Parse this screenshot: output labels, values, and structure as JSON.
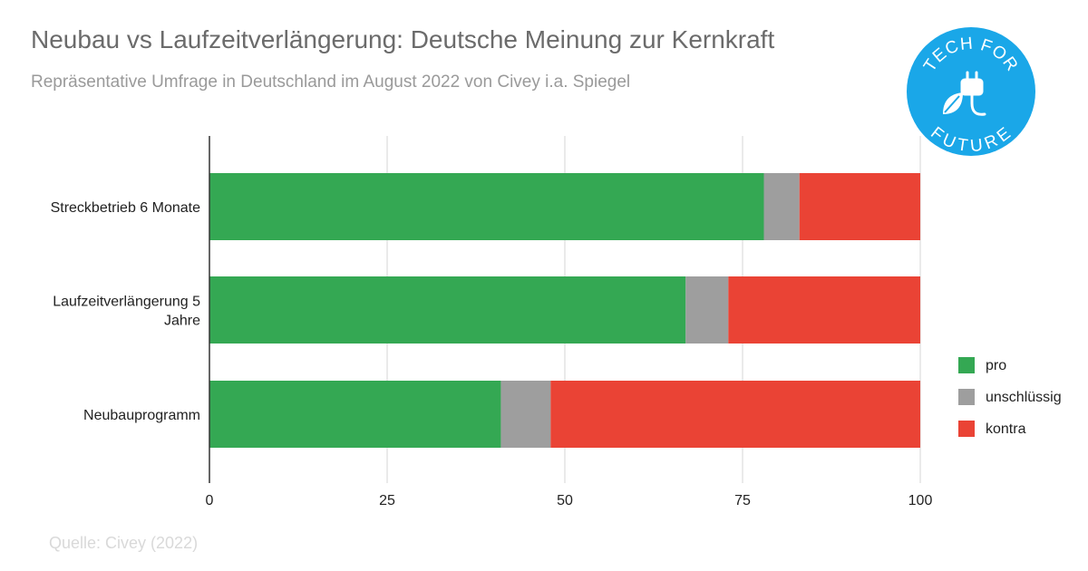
{
  "header": {
    "title": "Neubau vs Laufzeitverlängerung: Deutsche Meinung zur Kernkraft",
    "subtitle": "Repräsentative Umfrage in Deutschland im August 2022 von Civey i.a. Spiegel"
  },
  "footer": {
    "source": "Quelle: Civey (2022)"
  },
  "logo": {
    "line1": "TECH FOR",
    "line2": "FUTURE",
    "color": "#1aa7e8",
    "icon": "plug-leaf-icon"
  },
  "chart_data": {
    "type": "bar",
    "orientation": "horizontal",
    "stacked": true,
    "categories": [
      [
        "Streckbetrieb 6 Monate"
      ],
      [
        "Laufzeitverlängerung 5",
        "Jahre"
      ],
      [
        "Neubauprogramm"
      ]
    ],
    "series": [
      {
        "name": "pro",
        "color": "#34a853",
        "values": [
          78,
          67,
          41
        ]
      },
      {
        "name": "unschlüssig",
        "color": "#9e9e9e",
        "values": [
          5,
          6,
          7
        ]
      },
      {
        "name": "kontra",
        "color": "#ea4335",
        "values": [
          17,
          27,
          52
        ]
      }
    ],
    "xlim": [
      0,
      100
    ],
    "xticks": [
      0,
      25,
      50,
      75,
      100
    ],
    "xlabel": "",
    "ylabel": "",
    "grid": true,
    "legend_position": "right"
  }
}
